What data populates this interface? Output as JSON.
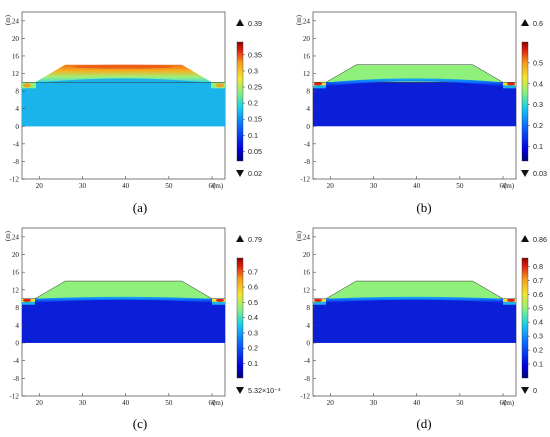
{
  "panels": [
    {
      "id": "a",
      "caption": "(a)",
      "y_unit": "(m)",
      "x_unit": "(m)",
      "y_ticks": [
        "24",
        "20",
        "16",
        "12",
        "8",
        "4",
        "0",
        "-4",
        "-8",
        "-12"
      ],
      "x_ticks": [
        "20",
        "30",
        "40",
        "50",
        "60"
      ],
      "colorbar": {
        "max_label": "0.39",
        "min_label": "0.02",
        "ticks": [
          "0.35",
          "0.3",
          "0.25",
          "0.2",
          "0.15",
          "0.1",
          "0.05"
        ],
        "tick_values": [
          0.35,
          0.3,
          0.25,
          0.2,
          0.15,
          0.1,
          0.05
        ],
        "vmin": 0.02,
        "vmax": 0.39
      },
      "fill_style": "a"
    },
    {
      "id": "b",
      "caption": "(b)",
      "y_unit": "(m)",
      "x_unit": "(m)",
      "y_ticks": [
        "24",
        "20",
        "16",
        "12",
        "8",
        "4",
        "0",
        "-4",
        "-8",
        "-12"
      ],
      "x_ticks": [
        "20",
        "30",
        "40",
        "50",
        "60"
      ],
      "colorbar": {
        "max_label": "0.6",
        "min_label": "0.03",
        "ticks": [
          "0.5",
          "0.4",
          "0.3",
          "0.2",
          "0.1"
        ],
        "tick_values": [
          0.5,
          0.4,
          0.3,
          0.2,
          0.1
        ],
        "vmin": 0.03,
        "vmax": 0.6
      },
      "fill_style": "b"
    },
    {
      "id": "c",
      "caption": "(c)",
      "y_unit": "(m)",
      "x_unit": "(m)",
      "y_ticks": [
        "24",
        "20",
        "16",
        "12",
        "8",
        "4",
        "0",
        "-4",
        "-8",
        "-12"
      ],
      "x_ticks": [
        "20",
        "30",
        "40",
        "50",
        "60"
      ],
      "colorbar": {
        "max_label": "0.79",
        "min_label": "5.32×10⁻³",
        "ticks": [
          "0.7",
          "0.6",
          "0.5",
          "0.4",
          "0.3",
          "0.2",
          "0.1"
        ],
        "tick_values": [
          0.7,
          0.6,
          0.5,
          0.4,
          0.3,
          0.2,
          0.1
        ],
        "vmin": 0.00532,
        "vmax": 0.79
      },
      "fill_style": "c"
    },
    {
      "id": "d",
      "caption": "(d)",
      "y_unit": "(m)",
      "x_unit": "(m)",
      "y_ticks": [
        "24",
        "20",
        "16",
        "12",
        "8",
        "4",
        "0",
        "-4",
        "-8",
        "-12"
      ],
      "x_ticks": [
        "20",
        "30",
        "40",
        "50",
        "60"
      ],
      "colorbar": {
        "max_label": "0.86",
        "min_label": "0",
        "ticks": [
          "0.8",
          "0.7",
          "0.6",
          "0.5",
          "0.4",
          "0.3",
          "0.2",
          "0.1"
        ],
        "tick_values": [
          0.8,
          0.7,
          0.6,
          0.5,
          0.4,
          0.3,
          0.2,
          0.1
        ],
        "vmin": 0,
        "vmax": 0.86
      },
      "fill_style": "d"
    }
  ],
  "geometry_data": {
    "x_range": [
      16,
      63
    ],
    "y_range": [
      -12,
      26
    ],
    "foundation_top": 0,
    "embankment_base_y": 10,
    "embankment_crest_y": 14,
    "embankment_base_x": [
      19,
      60
    ],
    "embankment_crest_x": [
      26,
      53
    ],
    "water_level_y": 10
  },
  "colors": {
    "deep_blue": "#0b1fd8",
    "cyan": "#1ab3ea",
    "light_green": "#8ff07c",
    "yellow": "#f2e431",
    "orange": "#f5a020",
    "red": "#e02010",
    "dark_red": "#8a0000"
  }
}
